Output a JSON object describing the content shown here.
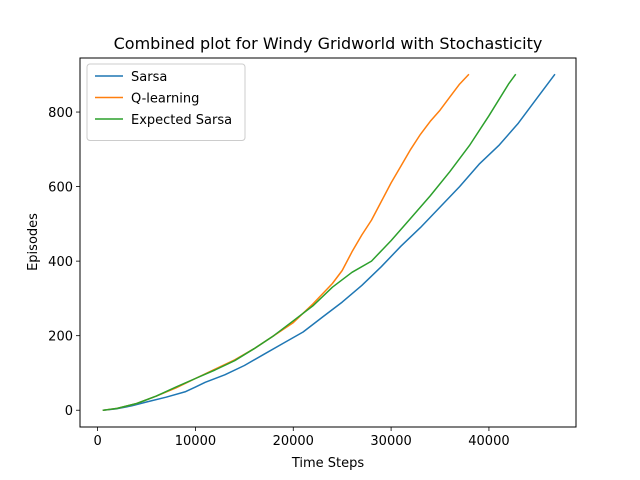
{
  "chart_data": {
    "type": "line",
    "title": "Combined plot for Windy Gridworld with Stochasticity",
    "xlabel": "Time Steps",
    "ylabel": "Episodes",
    "xlim": [
      -1800,
      48900
    ],
    "ylim": [
      -45,
      945
    ],
    "xticks": [
      0,
      10000,
      20000,
      30000,
      40000
    ],
    "yticks": [
      0,
      200,
      400,
      600,
      800
    ],
    "legend_position": "upper left",
    "grid": false,
    "series": [
      {
        "name": "Sarsa",
        "color": "#1f77b4",
        "x": [
          600,
          2000,
          3500,
          5000,
          7000,
          9000,
          10000,
          11000,
          13000,
          15000,
          17000,
          19000,
          21000,
          23000,
          25000,
          27000,
          29000,
          31000,
          33000,
          35000,
          37000,
          39000,
          41000,
          43000,
          45000,
          46700
        ],
        "y": [
          0,
          4,
          12,
          22,
          35,
          50,
          62,
          75,
          95,
          120,
          150,
          180,
          210,
          250,
          290,
          335,
          385,
          440,
          490,
          545,
          600,
          660,
          710,
          770,
          840,
          900
        ]
      },
      {
        "name": "Q-learning",
        "color": "#ff7f0e",
        "x": [
          600,
          2000,
          4000,
          6000,
          8000,
          10000,
          12000,
          14000,
          16000,
          18000,
          20000,
          22000,
          24000,
          25000,
          26000,
          27000,
          28000,
          29000,
          30000,
          31000,
          32000,
          33000,
          34000,
          35000,
          36000,
          37000,
          37900
        ],
        "y": [
          0,
          5,
          18,
          38,
          60,
          85,
          110,
          135,
          165,
          200,
          235,
          285,
          340,
          375,
          425,
          470,
          510,
          560,
          610,
          655,
          700,
          740,
          775,
          805,
          840,
          875,
          900
        ]
      },
      {
        "name": "Expected Sarsa",
        "color": "#2ca02c",
        "x": [
          600,
          2000,
          4000,
          6000,
          8000,
          10000,
          12000,
          14000,
          16000,
          18000,
          20000,
          22000,
          24000,
          26000,
          28000,
          30000,
          32000,
          34000,
          36000,
          38000,
          40000,
          42000,
          42700
        ],
        "y": [
          0,
          5,
          18,
          38,
          62,
          85,
          108,
          133,
          165,
          200,
          240,
          280,
          330,
          370,
          400,
          455,
          515,
          575,
          640,
          710,
          790,
          875,
          900
        ]
      }
    ]
  }
}
